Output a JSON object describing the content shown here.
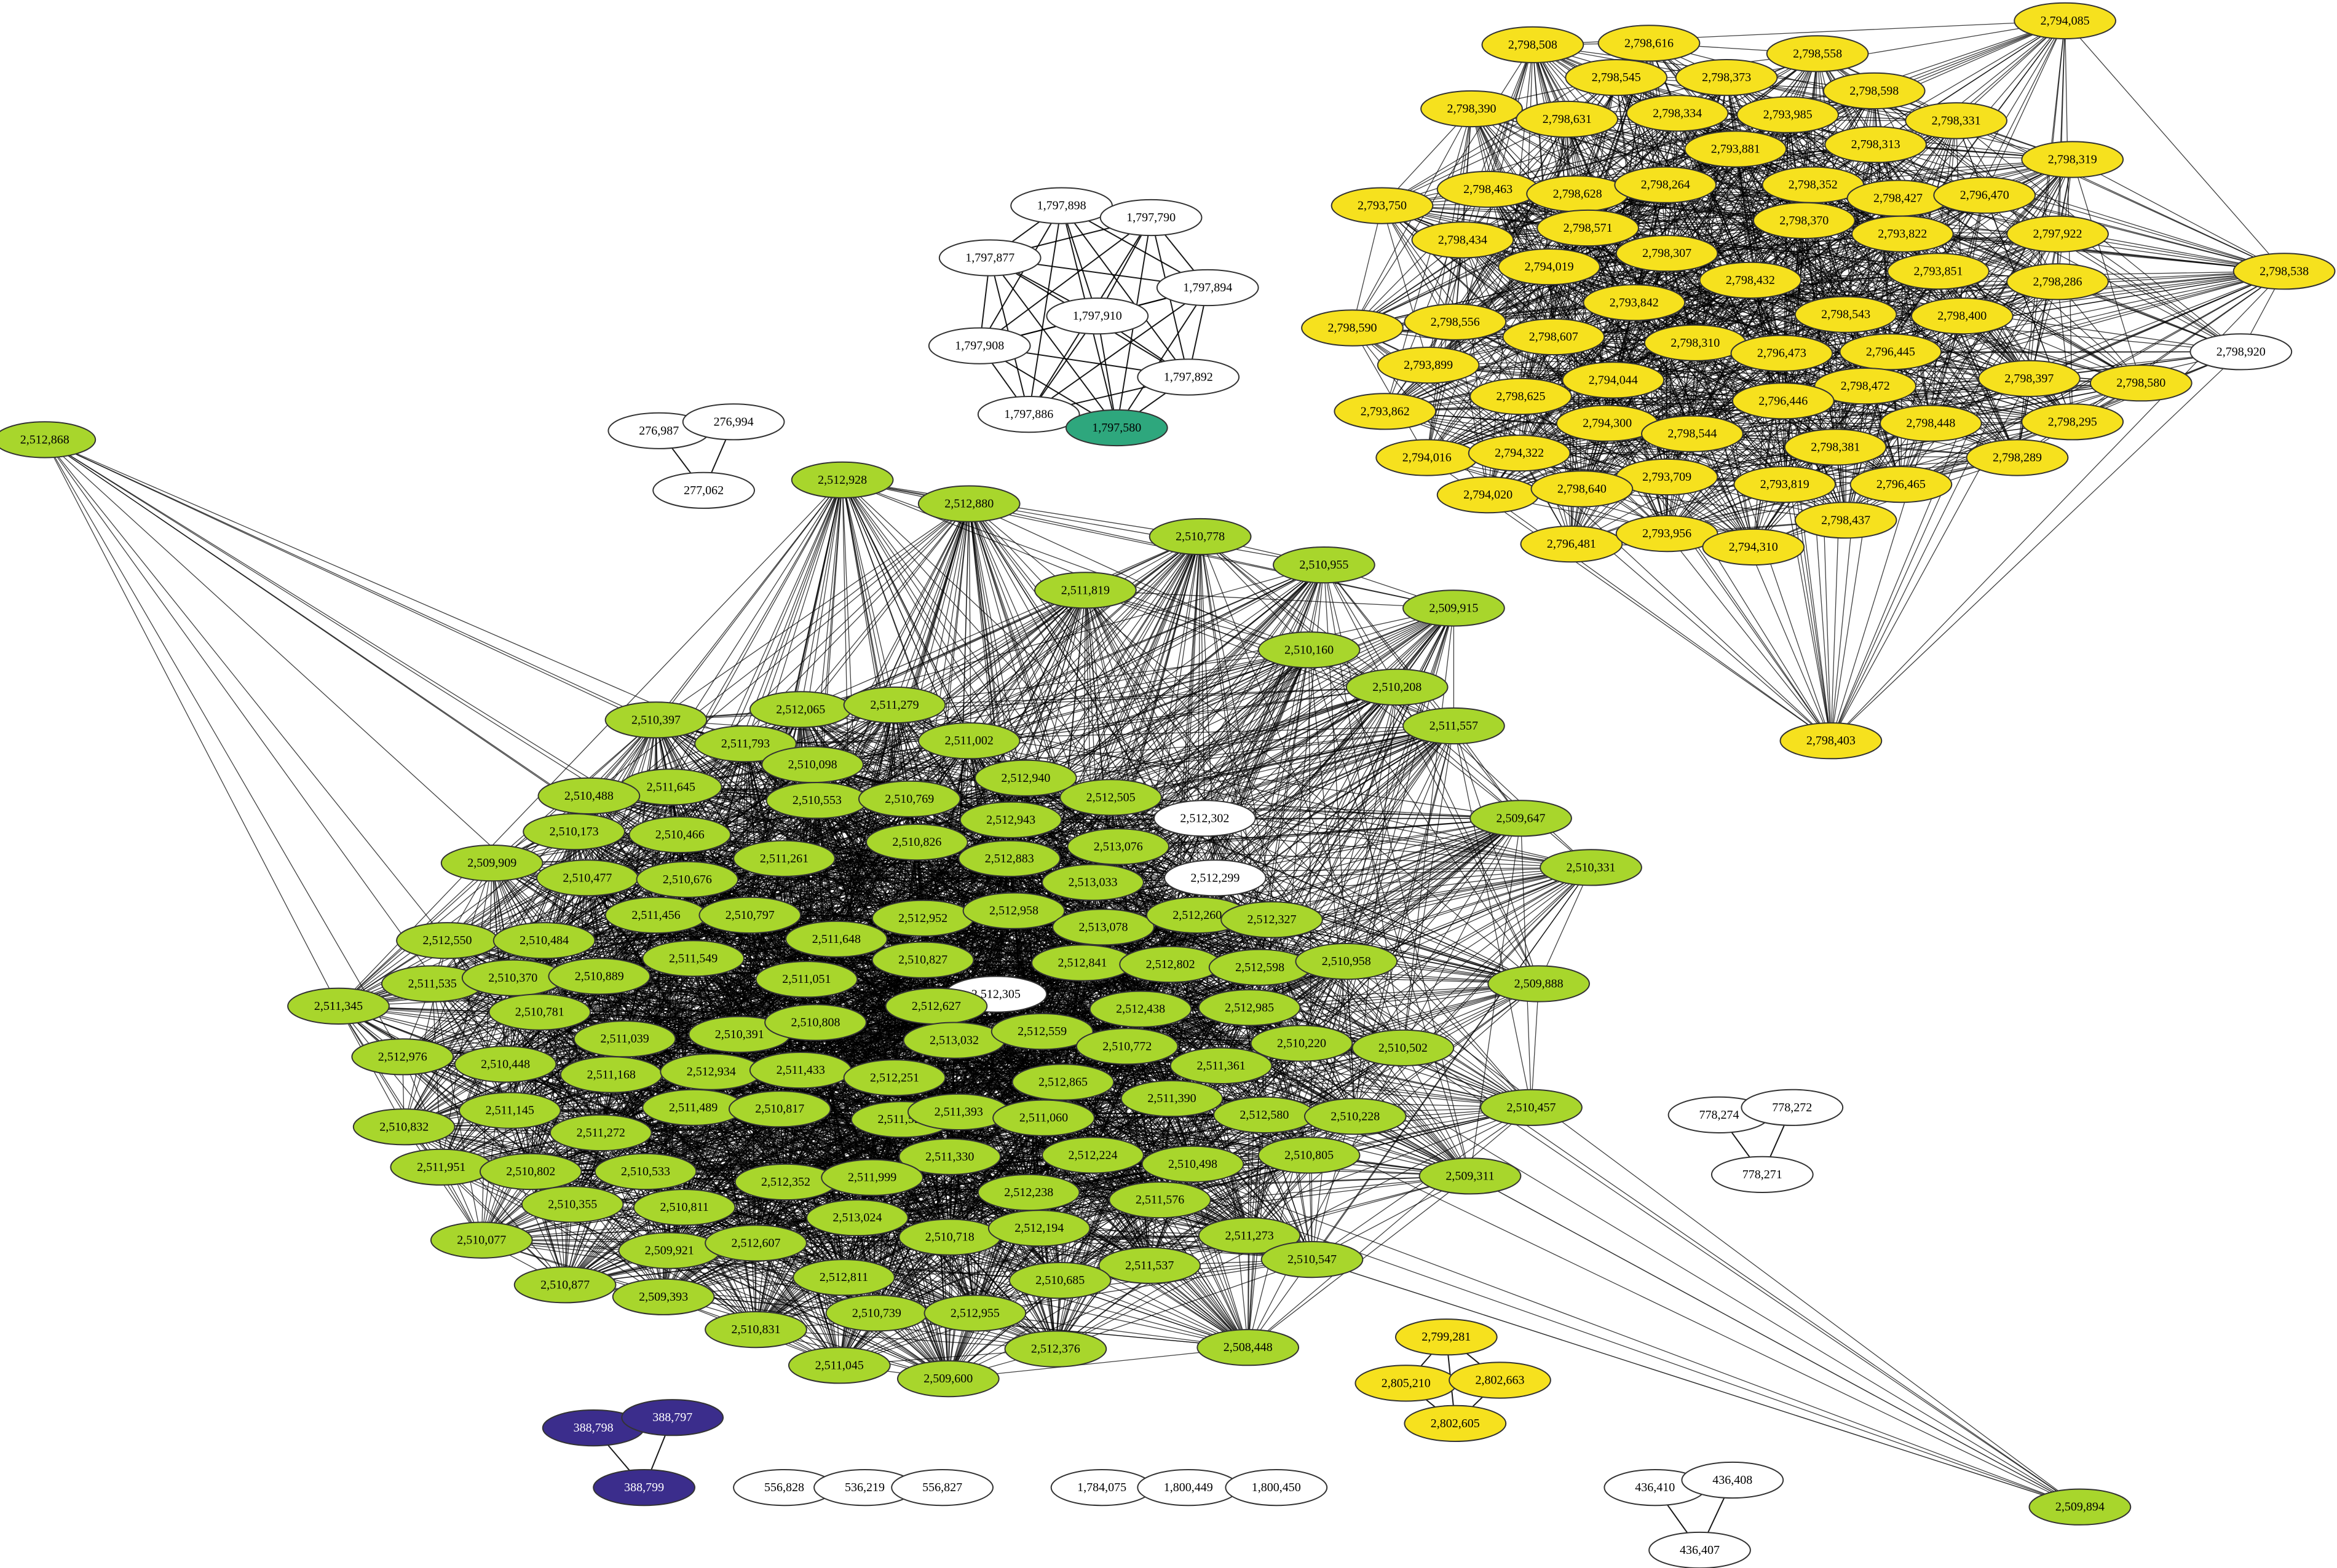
{
  "graph": {
    "node_colors": {
      "lime": "#a8d62c",
      "yellow": "#f6e11e",
      "green": "#2ea77d",
      "purple": "#3b2d8c",
      "white": "#ffffff"
    },
    "edge_color": "#000000",
    "node_stroke": "#333333",
    "components": [
      {
        "id": "lime-cluster",
        "color": "lime",
        "dense": true,
        "nodes": [
          "2,512,868",
          "2,512,928",
          "2,512,880",
          "2,510,778",
          "2,511,819",
          "2,510,955",
          "2,509,915",
          "2,510,160",
          "2,510,208",
          "2,511,557",
          "2,510,397",
          "2,512,065",
          "2,511,279",
          "2,511,002",
          "2,511,793",
          "2,510,098",
          "2,511,645",
          "2,510,488",
          "2,510,553",
          "2,510,769",
          "2,512,940",
          "2,512,505",
          "2,512,302",
          "2,509,647",
          "2,510,173",
          "2,510,466",
          "2,512,943",
          "2,511,261",
          "2,510,826",
          "2,513,076",
          "2,512,883",
          "2,509,909",
          "2,510,477",
          "2,510,676",
          "2,513,033",
          "2,512,299",
          "2,510,331",
          "2,511,456",
          "2,510,797",
          "2,512,952",
          "2,512,958",
          "2,512,550",
          "2,510,484",
          "2,511,648",
          "2,513,078",
          "2,512,260",
          "2,512,327",
          "2,511,549",
          "2,510,827",
          "2,511,535",
          "2,510,370",
          "2,510,889",
          "2,512,841",
          "2,512,802",
          "2,512,598",
          "2,510,958",
          "2,509,888",
          "2,511,345",
          "2,511,051",
          "2,512,305",
          "2,510,781",
          "2,512,627",
          "2,512,438",
          "2,512,985",
          "2,511,039",
          "2,510,391",
          "2,510,808",
          "2,513,032",
          "2,512,559",
          "2,510,772",
          "2,510,220",
          "2,510,502",
          "2,512,976",
          "2,510,448",
          "2,511,168",
          "2,512,934",
          "2,511,433",
          "2,512,251",
          "2,511,361",
          "2,512,865",
          "2,511,145",
          "2,511,489",
          "2,510,817",
          "2,511,555",
          "2,511,393",
          "2,511,060",
          "2,511,390",
          "2,512,580",
          "2,510,228",
          "2,510,457",
          "2,510,832",
          "2,511,272",
          "2,511,951",
          "2,510,802",
          "2,510,533",
          "2,511,330",
          "2,512,224",
          "2,510,498",
          "2,510,805",
          "2,509,311",
          "2,512,352",
          "2,511,999",
          "2,512,238",
          "2,510,355",
          "2,510,811",
          "2,511,576",
          "2,513,024",
          "2,510,077",
          "2,510,718",
          "2,512,194",
          "2,511,273",
          "2,509,921",
          "2,512,607",
          "2,511,537",
          "2,510,547",
          "2,510,877",
          "2,509,393",
          "2,512,811",
          "2,510,685",
          "2,510,739",
          "2,512,955",
          "2,510,831",
          "2,512,376",
          "2,508,448",
          "2,511,045",
          "2,509,600",
          "2,509,894"
        ],
        "white_nodes": [
          "2,512,302",
          "2,512,299",
          "2,512,305"
        ]
      },
      {
        "id": "yellow-cluster",
        "color": "yellow",
        "dense": true,
        "nodes": [
          "2,794,085",
          "2,798,508",
          "2,798,616",
          "2,798,558",
          "2,798,545",
          "2,798,373",
          "2,798,598",
          "2,798,390",
          "2,798,631",
          "2,798,334",
          "2,793,985",
          "2,798,331",
          "2,798,313",
          "2,793,881",
          "2,798,319",
          "2,793,750",
          "2,798,463",
          "2,798,628",
          "2,798,264",
          "2,798,352",
          "2,798,427",
          "2,796,470",
          "2,798,434",
          "2,798,571",
          "2,798,370",
          "2,793,822",
          "2,797,922",
          "2,794,019",
          "2,798,307",
          "2,793,851",
          "2,798,432",
          "2,798,286",
          "2,798,538",
          "2,798,590",
          "2,798,556",
          "2,793,842",
          "2,798,543",
          "2,798,400",
          "2,798,607",
          "2,798,310",
          "2,796,473",
          "2,796,445",
          "2,798,920",
          "2,793,899",
          "2,794,044",
          "2,798,472",
          "2,798,397",
          "2,798,580",
          "2,793,862",
          "2,798,625",
          "2,796,446",
          "2,798,448",
          "2,798,295",
          "2,794,300",
          "2,798,544",
          "2,798,381",
          "2,794,016",
          "2,794,322",
          "2,798,289",
          "2,793,709",
          "2,793,819",
          "2,796,465",
          "2,794,020",
          "2,798,640",
          "2,798,437",
          "2,796,481",
          "2,793,956",
          "2,794,310",
          "2,798,403"
        ],
        "white_nodes": [
          "2,798,920"
        ]
      },
      {
        "id": "green-clique",
        "color": "white",
        "nodes": [
          "1,797,898",
          "1,797,790",
          "1,797,877",
          "1,797,894",
          "1,797,910",
          "1,797,908",
          "1,797,892",
          "1,797,886",
          "1,797,580"
        ],
        "colored_nodes": {
          "1,797,580": "green"
        }
      },
      {
        "id": "tri-276",
        "color": "white",
        "nodes": [
          "276,987",
          "276,994",
          "277,062"
        ]
      },
      {
        "id": "tri-778",
        "color": "white",
        "nodes": [
          "778,274",
          "778,272",
          "778,271"
        ]
      },
      {
        "id": "tri-yellow-small",
        "color": "yellow",
        "nodes": [
          "2,799,281",
          "2,805,210",
          "2,802,663",
          "2,802,605"
        ]
      },
      {
        "id": "tri-388",
        "color": "purple",
        "nodes": [
          "388,798",
          "388,797",
          "388,799"
        ]
      },
      {
        "id": "path-556",
        "color": "white",
        "nodes": [
          "556,828",
          "536,219",
          "556,827"
        ]
      },
      {
        "id": "path-1784",
        "color": "white",
        "nodes": [
          "1,784,075",
          "1,800,449",
          "1,800,450"
        ]
      },
      {
        "id": "tri-436",
        "color": "white",
        "nodes": [
          "436,410",
          "436,408",
          "436,407"
        ]
      }
    ]
  }
}
